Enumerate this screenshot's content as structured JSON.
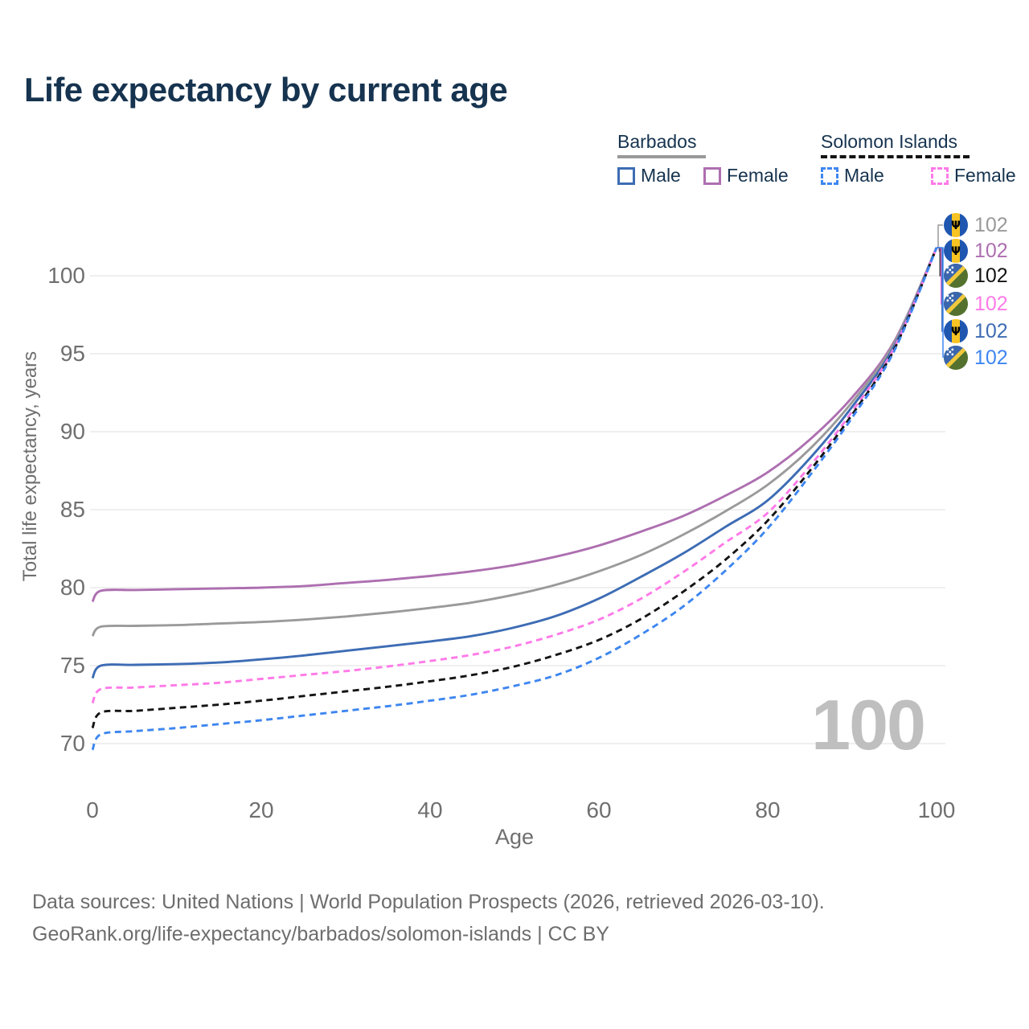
{
  "title": "Life expectancy by current age",
  "legend": {
    "groups": [
      {
        "country": "Barbados",
        "line_style": "solid",
        "underline_color": "#999999",
        "items": [
          {
            "label": "Male",
            "color": "#3d6cb4",
            "dashed": false
          },
          {
            "label": "Female",
            "color": "#ad6fb0",
            "dashed": false
          }
        ]
      },
      {
        "country": "Solomon Islands",
        "line_style": "dashed",
        "underline_color": "#141414",
        "items": [
          {
            "label": "Male",
            "color": "#3e86f0",
            "dashed": true
          },
          {
            "label": "Female",
            "color": "#ff7ae8",
            "dashed": true
          }
        ]
      }
    ]
  },
  "y_axis": {
    "label": "Total life expectancy, years",
    "ticks": [
      70,
      75,
      80,
      85,
      90,
      95,
      100
    ]
  },
  "x_axis": {
    "label": "Age",
    "ticks": [
      0,
      20,
      40,
      60,
      80,
      100
    ]
  },
  "end_labels": [
    {
      "flag": "barbados",
      "value": "102",
      "color": "#999999"
    },
    {
      "flag": "barbados",
      "value": "102",
      "color": "#ad6fb0"
    },
    {
      "flag": "solomon-islands",
      "value": "102",
      "color": "#141414"
    },
    {
      "flag": "solomon-islands",
      "value": "102",
      "color": "#ff7ae8"
    },
    {
      "flag": "barbados",
      "value": "102",
      "color": "#3d6cb4"
    },
    {
      "flag": "solomon-islands",
      "value": "102",
      "color": "#3e86f0"
    }
  ],
  "watermark": "100",
  "footer": {
    "line1": "Data sources: United Nations | World Population Prospects (2026, retrieved 2026-03-10).",
    "line2": "GeoRank.org/life-expectancy/barbados/solomon-islands | CC BY"
  },
  "colors": {
    "title_text": "#16334f",
    "axis_text": "#6f6f6f",
    "gridline": "#eaeaea",
    "watermark": "#bfbfbf"
  },
  "chart_data": {
    "type": "line",
    "title": "Life expectancy by current age",
    "xlabel": "Age",
    "ylabel": "Total life expectancy, years",
    "xlim": [
      0,
      100
    ],
    "ylim": [
      68.5,
      103
    ],
    "grid": "horizontal",
    "legend_position": "top-right",
    "x": [
      0,
      1,
      5,
      10,
      15,
      20,
      25,
      30,
      35,
      40,
      45,
      50,
      55,
      60,
      65,
      70,
      75,
      80,
      85,
      90,
      95,
      100
    ],
    "series": [
      {
        "name": "Barbados Female",
        "country": "Barbados",
        "sex": "female",
        "color": "#ad6fb0",
        "dashed": false,
        "end_value_label": "102",
        "values": [
          79.1,
          79.8,
          79.85,
          79.9,
          79.95,
          80.0,
          80.1,
          80.3,
          80.5,
          80.75,
          81.05,
          81.45,
          82.0,
          82.7,
          83.6,
          84.6,
          85.9,
          87.4,
          89.5,
          92.2,
          95.8,
          101.8
        ]
      },
      {
        "name": "Barbados Both sexes",
        "country": "Barbados",
        "sex": "both",
        "color": "#9a9a9a",
        "dashed": false,
        "end_value_label": "102",
        "values": [
          76.9,
          77.5,
          77.55,
          77.6,
          77.7,
          77.8,
          77.95,
          78.15,
          78.4,
          78.7,
          79.05,
          79.55,
          80.2,
          81.05,
          82.1,
          83.4,
          84.9,
          86.6,
          88.9,
          91.9,
          95.7,
          101.8
        ]
      },
      {
        "name": "Barbados Male",
        "country": "Barbados",
        "sex": "male",
        "color": "#3d6cb4",
        "dashed": false,
        "end_value_label": "102",
        "values": [
          74.2,
          75.0,
          75.05,
          75.1,
          75.2,
          75.4,
          75.65,
          75.95,
          76.25,
          76.55,
          76.9,
          77.45,
          78.2,
          79.3,
          80.7,
          82.2,
          83.9,
          85.6,
          88.3,
          91.6,
          95.5,
          101.8
        ]
      },
      {
        "name": "Solomon Islands Female",
        "country": "Solomon Islands",
        "sex": "female",
        "color": "#ff7ae8",
        "dashed": true,
        "end_value_label": "102",
        "values": [
          72.6,
          73.5,
          73.6,
          73.75,
          73.9,
          74.15,
          74.4,
          74.65,
          74.95,
          75.3,
          75.7,
          76.25,
          77.0,
          77.95,
          79.3,
          81.0,
          82.9,
          84.8,
          87.8,
          91.3,
          95.4,
          101.8
        ]
      },
      {
        "name": "Solomon Islands Both sexes",
        "country": "Solomon Islands",
        "sex": "both",
        "color": "#141414",
        "dashed": true,
        "end_value_label": "102",
        "values": [
          71.0,
          72.0,
          72.1,
          72.3,
          72.5,
          72.75,
          73.05,
          73.35,
          73.65,
          74.0,
          74.4,
          74.95,
          75.7,
          76.65,
          78.0,
          79.75,
          81.8,
          84.3,
          87.5,
          91.1,
          95.3,
          101.8
        ]
      },
      {
        "name": "Solomon Islands Male",
        "country": "Solomon Islands",
        "sex": "male",
        "color": "#3e86f0",
        "dashed": true,
        "end_value_label": "102",
        "values": [
          69.6,
          70.6,
          70.8,
          71.0,
          71.25,
          71.5,
          71.8,
          72.1,
          72.4,
          72.75,
          73.15,
          73.7,
          74.4,
          75.5,
          77.0,
          78.8,
          81.1,
          83.8,
          87.2,
          90.9,
          95.2,
          101.8
        ]
      }
    ]
  }
}
